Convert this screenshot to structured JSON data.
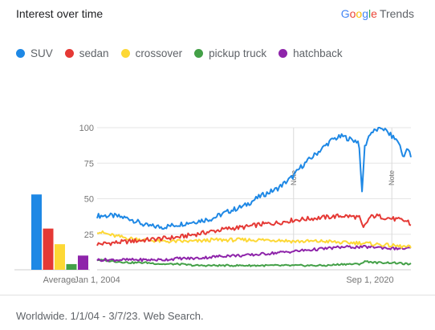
{
  "header": {
    "title": "Interest over time",
    "brand_google": "Google",
    "brand_trends": "Trends",
    "brand_colors": [
      "#4285f4",
      "#ea4335",
      "#fbbc05",
      "#4285f4",
      "#34a853",
      "#ea4335"
    ]
  },
  "footer": {
    "text": "Worldwide. 1/1/04 - 3/7/23. Web Search."
  },
  "chart_data": {
    "type": "line",
    "x_start": "2004-01",
    "x_end": "2023-03",
    "x_tick_labels": [
      "Jan 1, 2004",
      "Sep 1, 2020"
    ],
    "x_ticks": [
      "2004-01",
      "2020-09"
    ],
    "ylim": [
      0,
      100
    ],
    "y_ticks": [
      25,
      50,
      75,
      100
    ],
    "grid": true,
    "legend_position": "top-left",
    "notes": [
      {
        "label": "Note",
        "date": "2016-01"
      },
      {
        "label": "Note",
        "date": "2022-01"
      }
    ],
    "average_label": "Average",
    "series": [
      {
        "name": "SUV",
        "color": "#1e88e5",
        "average": 53,
        "points": [
          [
            "2004-01",
            38
          ],
          [
            "2005-01",
            38
          ],
          [
            "2006-01",
            36
          ],
          [
            "2007-01",
            31
          ],
          [
            "2008-01",
            30
          ],
          [
            "2009-01",
            32
          ],
          [
            "2010-01",
            34
          ],
          [
            "2011-01",
            36
          ],
          [
            "2012-01",
            41
          ],
          [
            "2013-01",
            45
          ],
          [
            "2014-01",
            52
          ],
          [
            "2015-01",
            57
          ],
          [
            "2016-01",
            66
          ],
          [
            "2016-06",
            72
          ],
          [
            "2017-01",
            78
          ],
          [
            "2017-06",
            82
          ],
          [
            "2018-01",
            88
          ],
          [
            "2018-06",
            92
          ],
          [
            "2019-01",
            94
          ],
          [
            "2019-06",
            92
          ],
          [
            "2020-01",
            90
          ],
          [
            "2020-03",
            52
          ],
          [
            "2020-05",
            86
          ],
          [
            "2020-09",
            96
          ],
          [
            "2021-01",
            98
          ],
          [
            "2021-06",
            100
          ],
          [
            "2022-01",
            94
          ],
          [
            "2022-06",
            90
          ],
          [
            "2022-09",
            80
          ],
          [
            "2023-01",
            85
          ],
          [
            "2023-03",
            79
          ]
        ]
      },
      {
        "name": "sedan",
        "color": "#e53935",
        "average": 29,
        "points": [
          [
            "2004-01",
            18
          ],
          [
            "2005-01",
            19
          ],
          [
            "2006-01",
            20
          ],
          [
            "2007-01",
            21
          ],
          [
            "2008-01",
            22
          ],
          [
            "2009-01",
            23
          ],
          [
            "2010-01",
            25
          ],
          [
            "2011-01",
            27
          ],
          [
            "2012-01",
            29
          ],
          [
            "2013-01",
            30
          ],
          [
            "2014-01",
            32
          ],
          [
            "2015-01",
            33
          ],
          [
            "2016-01",
            35
          ],
          [
            "2017-01",
            36
          ],
          [
            "2018-01",
            37
          ],
          [
            "2019-01",
            38
          ],
          [
            "2020-01",
            37
          ],
          [
            "2020-04",
            29
          ],
          [
            "2020-09",
            37
          ],
          [
            "2021-01",
            38
          ],
          [
            "2022-01",
            36
          ],
          [
            "2023-01",
            34
          ],
          [
            "2023-03",
            31
          ]
        ]
      },
      {
        "name": "crossover",
        "color": "#fdd835",
        "average": 18,
        "points": [
          [
            "2004-01",
            27
          ],
          [
            "2005-01",
            24
          ],
          [
            "2006-01",
            22
          ],
          [
            "2007-01",
            21
          ],
          [
            "2008-01",
            20
          ],
          [
            "2009-01",
            20
          ],
          [
            "2010-01",
            20
          ],
          [
            "2011-01",
            21
          ],
          [
            "2012-01",
            21
          ],
          [
            "2013-01",
            21
          ],
          [
            "2014-01",
            21
          ],
          [
            "2015-01",
            21
          ],
          [
            "2016-01",
            20
          ],
          [
            "2017-01",
            20
          ],
          [
            "2018-01",
            20
          ],
          [
            "2019-01",
            19
          ],
          [
            "2020-01",
            19
          ],
          [
            "2021-01",
            18
          ],
          [
            "2022-01",
            17
          ],
          [
            "2023-01",
            16
          ],
          [
            "2023-03",
            16
          ]
        ]
      },
      {
        "name": "pickup truck",
        "color": "#43a047",
        "average": 4,
        "points": [
          [
            "2004-01",
            7
          ],
          [
            "2005-01",
            6
          ],
          [
            "2006-01",
            5
          ],
          [
            "2007-01",
            5
          ],
          [
            "2008-01",
            4
          ],
          [
            "2009-01",
            4
          ],
          [
            "2010-01",
            3
          ],
          [
            "2011-01",
            3
          ],
          [
            "2012-01",
            3
          ],
          [
            "2013-01",
            3
          ],
          [
            "2014-01",
            3
          ],
          [
            "2015-01",
            3
          ],
          [
            "2016-01",
            3
          ],
          [
            "2017-01",
            3
          ],
          [
            "2018-01",
            3
          ],
          [
            "2019-01",
            4
          ],
          [
            "2020-01",
            4
          ],
          [
            "2020-06",
            6
          ],
          [
            "2021-01",
            5
          ],
          [
            "2022-01",
            5
          ],
          [
            "2023-01",
            4
          ],
          [
            "2023-03",
            4
          ]
        ]
      },
      {
        "name": "hatchback",
        "color": "#8e24aa",
        "average": 10,
        "points": [
          [
            "2004-01",
            7
          ],
          [
            "2005-01",
            7
          ],
          [
            "2006-01",
            7
          ],
          [
            "2007-01",
            7
          ],
          [
            "2008-01",
            7
          ],
          [
            "2009-01",
            8
          ],
          [
            "2010-01",
            8
          ],
          [
            "2011-01",
            9
          ],
          [
            "2012-01",
            10
          ],
          [
            "2013-01",
            10
          ],
          [
            "2014-01",
            11
          ],
          [
            "2015-01",
            12
          ],
          [
            "2016-01",
            13
          ],
          [
            "2017-01",
            14
          ],
          [
            "2018-01",
            15
          ],
          [
            "2019-01",
            16
          ],
          [
            "2020-01",
            16
          ],
          [
            "2021-01",
            16
          ],
          [
            "2022-01",
            15
          ],
          [
            "2023-01",
            15
          ],
          [
            "2023-03",
            15
          ]
        ]
      }
    ]
  }
}
